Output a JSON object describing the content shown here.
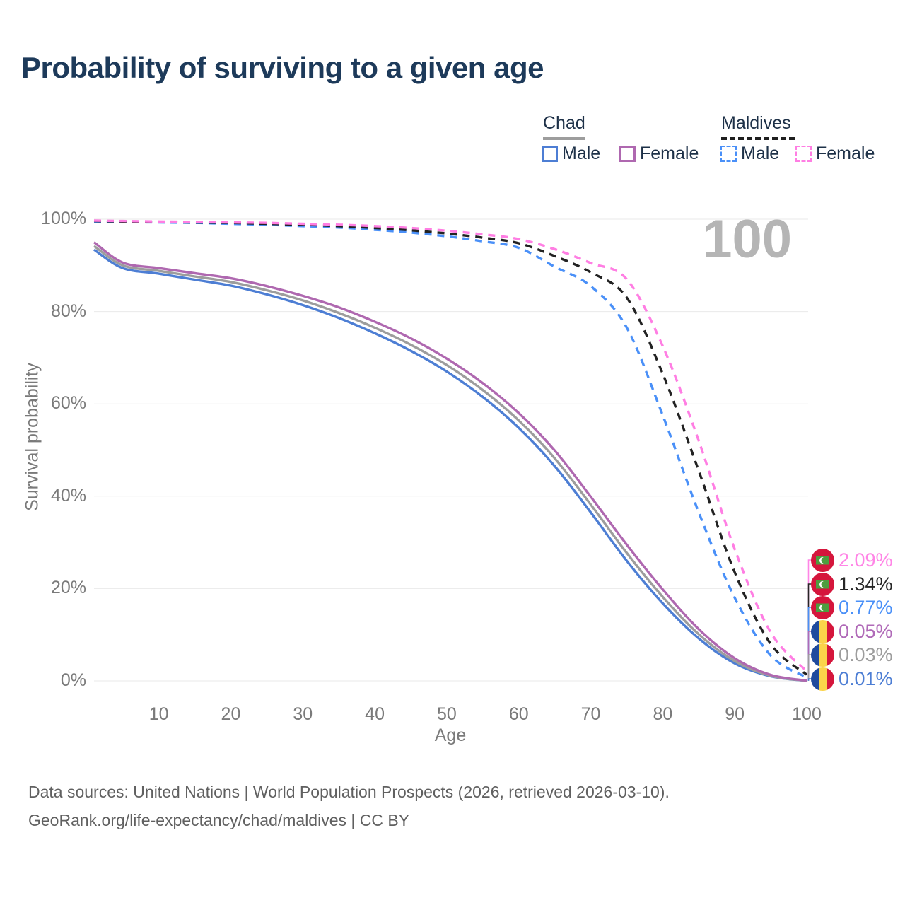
{
  "title": "Probability of surviving to a given age",
  "watermark_age": "100",
  "legend": {
    "groups": [
      {
        "name": "Chad",
        "line_style": "solid",
        "underline_color": "#9d9d9d",
        "items": [
          {
            "label": "Male",
            "color": "#4d7ed4",
            "dashed": false
          },
          {
            "label": "Female",
            "color": "#af68b0",
            "dashed": false
          }
        ]
      },
      {
        "name": "Maldives",
        "line_style": "dashed",
        "underline_color": "#1f1f1f",
        "items": [
          {
            "label": "Male",
            "color": "#4a90f8",
            "dashed": true
          },
          {
            "label": "Female",
            "color": "#ff7ee3",
            "dashed": true
          }
        ]
      }
    ]
  },
  "chart_data": {
    "type": "line",
    "title": "Probability of surviving to a given age",
    "xlabel": "Age",
    "ylabel": "Survival probability",
    "xlim": [
      1,
      100
    ],
    "ylim": [
      0,
      100
    ],
    "grid": "horizontal",
    "x_ticks": [
      10,
      20,
      30,
      40,
      50,
      60,
      70,
      80,
      90,
      100
    ],
    "y_ticks": [
      {
        "label": "0%",
        "value": 0
      },
      {
        "label": "20%",
        "value": 20
      },
      {
        "label": "40%",
        "value": 40
      },
      {
        "label": "60%",
        "value": 60
      },
      {
        "label": "80%",
        "value": 80
      },
      {
        "label": "100%",
        "value": 100
      }
    ],
    "x": [
      1,
      5,
      10,
      15,
      20,
      25,
      30,
      35,
      40,
      45,
      50,
      55,
      60,
      65,
      70,
      75,
      80,
      85,
      90,
      95,
      100
    ],
    "series": [
      {
        "name": "Chad Male",
        "country": "Chad",
        "sex": "male",
        "color": "#4d7ed4",
        "dash": "solid",
        "values": [
          93.4,
          89.4,
          88.2,
          86.9,
          85.6,
          83.7,
          81.4,
          78.6,
          75.3,
          71.5,
          67.0,
          61.5,
          54.8,
          46.5,
          36.5,
          26.0,
          16.8,
          9.2,
          3.8,
          1.0,
          0.01
        ]
      },
      {
        "name": "Chad Both sexes",
        "country": "Chad",
        "sex": "both",
        "color": "#9d9d9d",
        "dash": "solid",
        "values": [
          94.2,
          90.0,
          88.8,
          87.6,
          86.4,
          84.6,
          82.4,
          79.7,
          76.5,
          72.8,
          68.4,
          63.0,
          56.4,
          48.2,
          38.2,
          27.7,
          18.2,
          10.1,
          4.3,
          1.1,
          0.03
        ]
      },
      {
        "name": "Chad Female",
        "country": "Chad",
        "sex": "female",
        "color": "#af68b0",
        "dash": "solid",
        "values": [
          95.0,
          90.6,
          89.4,
          88.3,
          87.2,
          85.5,
          83.4,
          80.9,
          77.8,
          74.2,
          69.8,
          64.5,
          58.0,
          49.9,
          39.9,
          29.5,
          19.8,
          11.2,
          4.9,
          1.3,
          0.05
        ]
      },
      {
        "name": "Maldives Male",
        "country": "Maldives",
        "sex": "male",
        "color": "#4a90f8",
        "dash": "dashed",
        "values": [
          99.5,
          99.4,
          99.3,
          99.2,
          99.0,
          98.8,
          98.5,
          98.2,
          97.7,
          97.1,
          96.3,
          95.2,
          93.8,
          89.7,
          85.5,
          76.5,
          57.5,
          36.5,
          18.0,
          5.5,
          0.77
        ]
      },
      {
        "name": "Maldives Both sexes",
        "country": "Maldives",
        "sex": "both",
        "color": "#222222",
        "dash": "dashed",
        "values": [
          99.6,
          99.5,
          99.4,
          99.3,
          99.2,
          99.0,
          98.8,
          98.5,
          98.1,
          97.6,
          96.9,
          96.0,
          94.8,
          92.0,
          88.5,
          83.0,
          66.5,
          45.5,
          23.5,
          8.0,
          1.34
        ]
      },
      {
        "name": "Maldives Female",
        "country": "Maldives",
        "sex": "female",
        "color": "#ff7ee3",
        "dash": "dashed",
        "values": [
          99.7,
          99.6,
          99.5,
          99.4,
          99.3,
          99.2,
          99.0,
          98.8,
          98.5,
          98.1,
          97.5,
          96.7,
          95.7,
          93.5,
          90.5,
          87.0,
          72.5,
          52.0,
          28.5,
          10.5,
          2.09
        ]
      }
    ]
  },
  "side_labels": [
    {
      "value": "2.09%",
      "flag": "maldives",
      "series_index": 5,
      "color": "#ff85e6"
    },
    {
      "value": "1.34%",
      "flag": "maldives",
      "series_index": 4,
      "color": "#262626"
    },
    {
      "value": "0.77%",
      "flag": "maldives",
      "series_index": 3,
      "color": "#4a90f8"
    },
    {
      "value": "0.05%",
      "flag": "chad",
      "series_index": 2,
      "color": "#b06ab8"
    },
    {
      "value": "0.03%",
      "flag": "chad",
      "series_index": 1,
      "color": "#9d9d9d"
    },
    {
      "value": "0.01%",
      "flag": "chad",
      "series_index": 0,
      "color": "#4d7ed4"
    }
  ],
  "colors": {
    "title": "#1d3a5a",
    "axis_text": "#7a7a7a",
    "gridline": "#e9e9e9",
    "watermark": "#b5b5b5",
    "footer_text": "#606060",
    "maldives_flag": {
      "field": "#d5163c",
      "rect": "#4d9e3f",
      "crescent": "#ffffff"
    },
    "chad_flag": {
      "blue": "#1f4b9e",
      "yellow": "#fbd44a",
      "red": "#d5163c"
    }
  },
  "footer": {
    "line1": "Data sources: United Nations | World Population Prospects (2026, retrieved 2026-03-10).",
    "line2": "GeoRank.org/life-expectancy/chad/maldives | CC BY"
  }
}
